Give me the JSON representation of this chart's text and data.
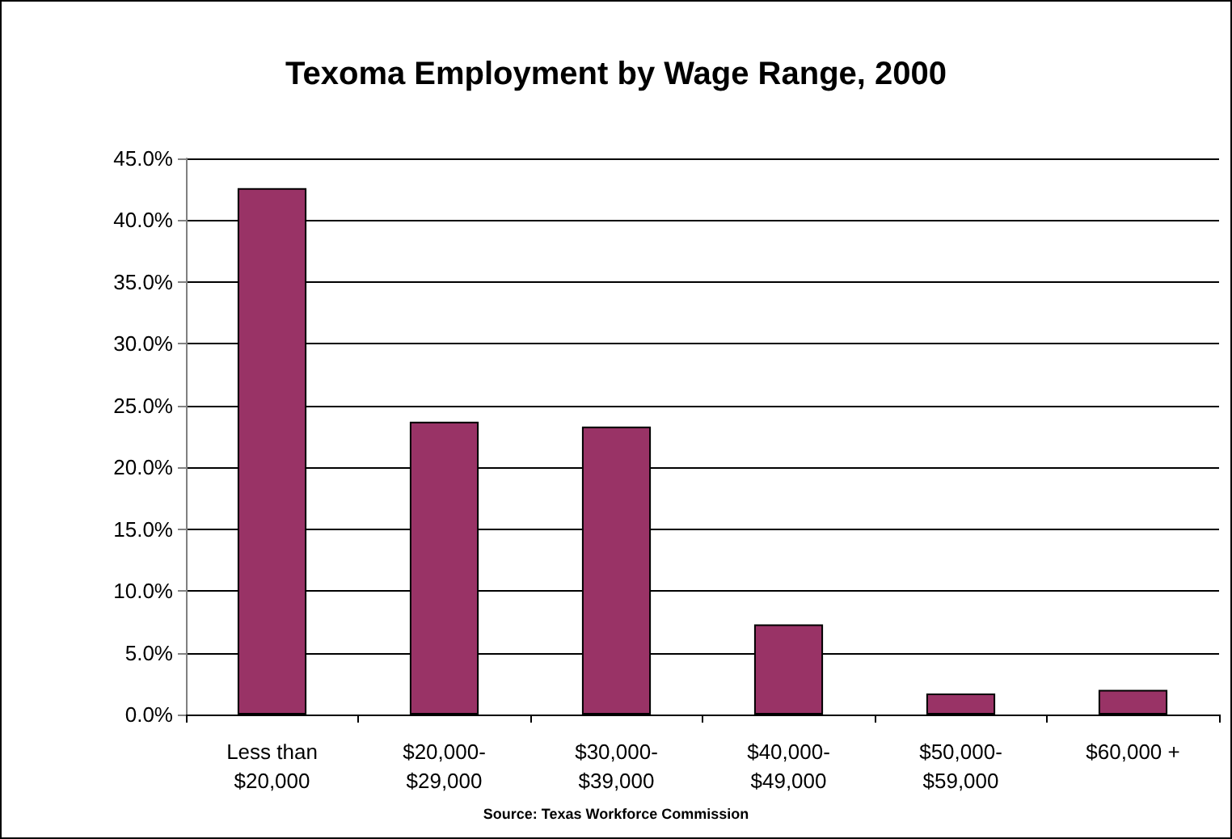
{
  "chart_data": {
    "type": "bar",
    "title": "Texoma Employment by Wage Range, 2000",
    "categories": [
      "Less than\n$20,000",
      "$20,000-\n$29,000",
      "$30,000-\n$39,000",
      "$40,000-\n$49,000",
      "$50,000-\n$59,000",
      "$60,000 +"
    ],
    "values": [
      42.6,
      23.7,
      23.3,
      7.3,
      1.7,
      2.0
    ],
    "color": "#993366",
    "ylim": [
      0,
      45
    ],
    "yticks": [
      {
        "value": 0,
        "label": "0.0%"
      },
      {
        "value": 5,
        "label": "5.0%"
      },
      {
        "value": 10,
        "label": "10.0%"
      },
      {
        "value": 15,
        "label": "15.0%"
      },
      {
        "value": 20,
        "label": "20.0%"
      },
      {
        "value": 25,
        "label": "25.0%"
      },
      {
        "value": 30,
        "label": "30.0%"
      },
      {
        "value": 35,
        "label": "35.0%"
      },
      {
        "value": 40,
        "label": "40.0%"
      },
      {
        "value": 45,
        "label": "45.0%"
      }
    ],
    "grid": "y",
    "annotations": [
      "Source: Texas Workforce Commission"
    ]
  }
}
